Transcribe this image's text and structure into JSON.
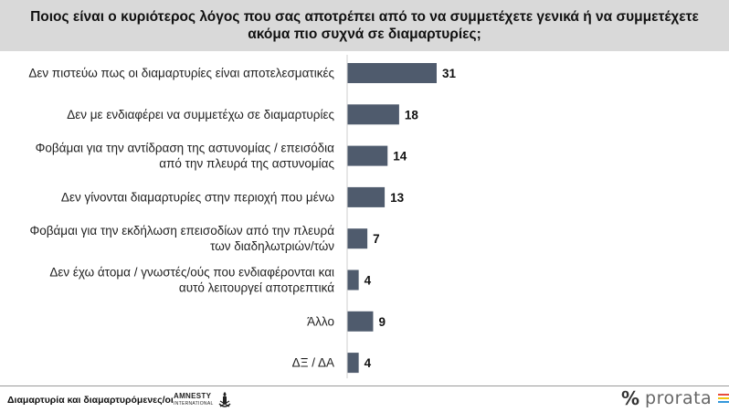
{
  "title": "Ποιος είναι ο κυριότερος λόγος που σας αποτρέπει από το να συμμετέχετε γενικά ή να συμμετέχετε ακόμα πιο συχνά σε διαμαρτυρίες;",
  "chart_data": {
    "type": "bar",
    "orientation": "horizontal",
    "categories": [
      [
        "Δεν πιστεύω πως οι διαμαρτυρίες είναι αποτελεσματικές"
      ],
      [
        "Δεν με ενδιαφέρει να συμμετέχω σε διαμαρτυρίες"
      ],
      [
        "Φοβάμαι για την αντίδραση της αστυνομίας / επεισόδια",
        "από την πλευρά της αστυνομίας"
      ],
      [
        "Δεν γίνονται διαμαρτυρίες στην περιοχή που μένω"
      ],
      [
        "Φοβάμαι για την εκδήλωση επεισοδίων από την πλευρά",
        "των διαδηλωτριών/τών"
      ],
      [
        "Δεν έχω άτομα / γνωστές/ούς που ενδιαφέρονται και",
        "αυτό λειτουργεί αποτρεπτικά"
      ],
      [
        "Άλλο"
      ],
      [
        "ΔΞ / ΔΑ"
      ]
    ],
    "values": [
      31,
      18,
      14,
      13,
      7,
      4,
      9,
      4
    ],
    "xlim": [
      0,
      31
    ],
    "bar_color": "#4f5b6d",
    "data_labels": true,
    "grid": false
  },
  "footer": {
    "text": "Διαμαρτυρία και διαμαρτυρόμενες/οι",
    "partner_logo_line1": "AMNESTY",
    "partner_logo_line2": "INTERNATIONAL",
    "brand_symbol": "%",
    "brand_name": "prorata",
    "brand_colors": [
      "#e74c3c",
      "#f1c40f",
      "#3498db"
    ]
  }
}
